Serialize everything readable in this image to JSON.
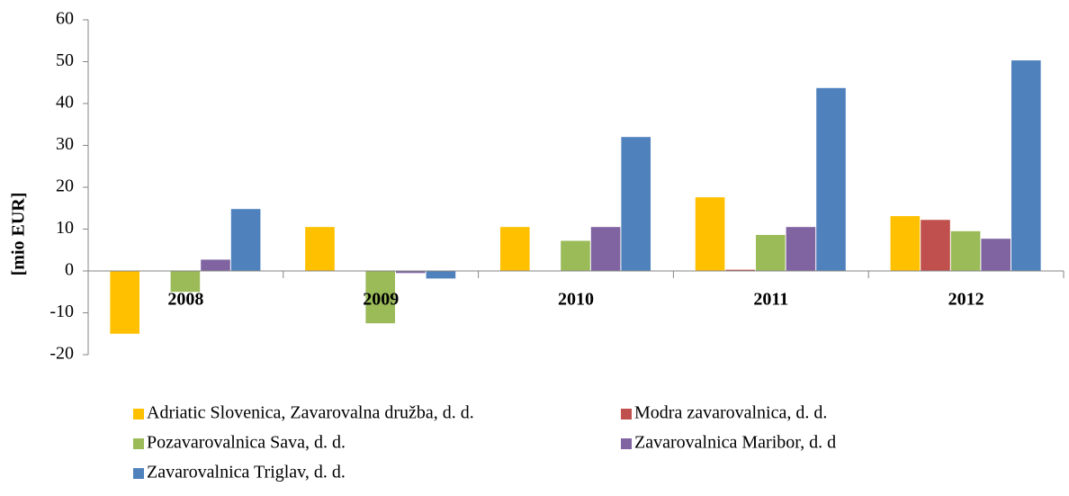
{
  "chart_data": {
    "type": "bar",
    "y_label": "[mio EUR]",
    "categories": [
      "2008",
      "2009",
      "2010",
      "2011",
      "2012"
    ],
    "series": [
      {
        "name": "Adriatic Slovenica, Zavarovalna družba, d. d.",
        "color": "#ffc000",
        "values": [
          -15,
          10.5,
          10.5,
          17.6,
          13.1
        ]
      },
      {
        "name": "Modra zavarovalnica, d. d.",
        "color": "#c0504d",
        "values": [
          null,
          null,
          null,
          0.3,
          12.2
        ]
      },
      {
        "name": "Pozavarovalnica Sava, d. d.",
        "color": "#9bbb59",
        "values": [
          -5,
          -12.5,
          7.2,
          8.6,
          9.5
        ]
      },
      {
        "name": "Zavarovalnica Maribor, d. d",
        "color": "#8064a2",
        "values": [
          2.7,
          -0.5,
          10.5,
          10.5,
          7.7
        ]
      },
      {
        "name": "Zavarovalnica Triglav, d. d.",
        "color": "#4f81bd",
        "values": [
          14.8,
          -1.8,
          32,
          43.7,
          50.3
        ]
      }
    ],
    "ylim": [
      -20,
      60
    ],
    "yticks": [
      -20,
      -10,
      0,
      10,
      20,
      30,
      40,
      50,
      60
    ]
  }
}
